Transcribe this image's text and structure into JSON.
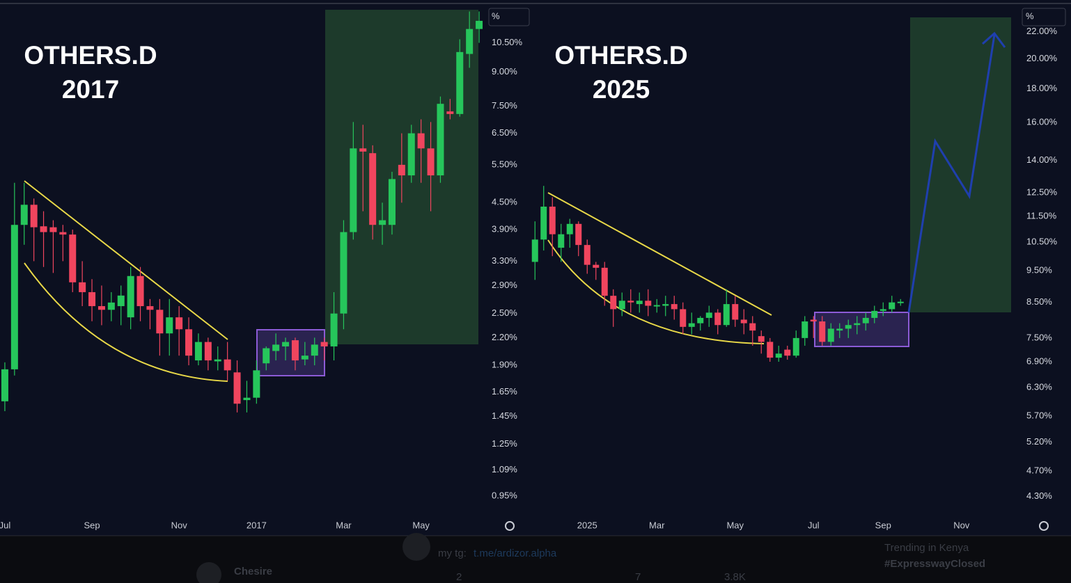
{
  "chart_data": [
    {
      "type": "candlestick",
      "title": "OTHERS.D",
      "subtitle": "2017",
      "scale_label": "%",
      "log_scale": true,
      "grid": false,
      "up_color": "#26c65b",
      "down_color": "#f0455e",
      "categories": [
        "Jul",
        null,
        null,
        null,
        null,
        null,
        null,
        null,
        null,
        "Sep",
        null,
        null,
        null,
        null,
        null,
        null,
        null,
        null,
        "Nov",
        null,
        null,
        null,
        null,
        null,
        null,
        null,
        "2017",
        null,
        null,
        null,
        null,
        null,
        null,
        null,
        null,
        "Mar",
        null,
        null,
        null,
        null,
        null,
        null,
        null,
        "May",
        null,
        null,
        null,
        null,
        null,
        null
      ],
      "open": [
        1.57,
        1.86,
        4.0,
        4.45,
        3.97,
        3.95,
        3.85,
        3.8,
        2.95,
        2.8,
        2.6,
        2.55,
        2.6,
        2.45,
        3.05,
        2.6,
        2.55,
        2.25,
        2.45,
        2.3,
        1.95,
        2.15,
        1.94,
        1.96,
        1.83,
        1.58,
        1.6,
        1.92,
        2.05,
        2.1,
        2.17,
        1.96,
        2.0,
        2.15,
        2.1,
        2.5,
        3.85,
        6.0,
        5.85,
        4.0,
        4.0,
        5.5,
        5.2,
        6.5,
        6.0,
        5.2,
        7.3,
        7.2,
        9.9,
        11.3
      ],
      "high": [
        1.93,
        5.0,
        5.0,
        4.6,
        4.3,
        4.1,
        4.0,
        3.9,
        3.3,
        3.0,
        2.9,
        2.8,
        2.9,
        3.2,
        3.2,
        2.7,
        2.7,
        2.7,
        2.6,
        2.45,
        2.25,
        2.2,
        2.1,
        2.15,
        1.95,
        1.75,
        1.95,
        2.1,
        2.25,
        2.2,
        2.2,
        2.15,
        2.2,
        2.2,
        2.8,
        4.1,
        6.9,
        6.8,
        6.1,
        4.5,
        5.3,
        6.5,
        6.8,
        7.0,
        6.9,
        7.9,
        7.8,
        10.7,
        12.4,
        12.4
      ],
      "low": [
        1.49,
        1.8,
        3.6,
        3.3,
        3.2,
        3.1,
        3.3,
        2.8,
        2.6,
        2.4,
        2.35,
        2.4,
        2.35,
        2.3,
        2.4,
        2.3,
        2.0,
        2.0,
        2.0,
        1.9,
        1.9,
        1.85,
        1.85,
        1.75,
        1.48,
        1.48,
        1.55,
        1.85,
        1.95,
        1.95,
        1.85,
        1.9,
        1.9,
        1.95,
        1.95,
        2.3,
        3.7,
        4.3,
        3.7,
        3.6,
        3.8,
        4.5,
        5.0,
        5.0,
        4.3,
        5.0,
        7.0,
        7.1,
        9.2,
        10.5
      ],
      "close": [
        1.86,
        4.0,
        4.45,
        3.95,
        3.85,
        3.85,
        3.8,
        2.95,
        2.8,
        2.6,
        2.55,
        2.65,
        2.75,
        3.05,
        2.6,
        2.55,
        2.25,
        2.45,
        2.3,
        2.0,
        2.15,
        1.95,
        1.96,
        1.85,
        1.55,
        1.6,
        1.85,
        2.08,
        2.12,
        2.15,
        1.95,
        2.0,
        2.12,
        2.1,
        2.5,
        3.85,
        6.0,
        5.9,
        4.0,
        4.1,
        5.1,
        5.2,
        6.5,
        6.0,
        5.2,
        7.6,
        7.2,
        10.0,
        11.3,
        11.8
      ],
      "ylim": [
        0.86,
        12.7
      ],
      "yticks": [
        {
          "value": 10.5,
          "label": "10.50%"
        },
        {
          "value": 9,
          "label": "9.00%"
        },
        {
          "value": 7.5,
          "label": "7.50%"
        },
        {
          "value": 6.5,
          "label": "6.50%"
        },
        {
          "value": 5.5,
          "label": "5.50%"
        },
        {
          "value": 4.5,
          "label": "4.50%"
        },
        {
          "value": 3.9,
          "label": "3.90%"
        },
        {
          "value": 3.3,
          "label": "3.30%"
        },
        {
          "value": 2.9,
          "label": "2.90%"
        },
        {
          "value": 2.5,
          "label": "2.50%"
        },
        {
          "value": 2.2,
          "label": "2.20%"
        },
        {
          "value": 1.9,
          "label": "1.90%"
        },
        {
          "value": 1.65,
          "label": "1.65%"
        },
        {
          "value": 1.45,
          "label": "1.45%"
        },
        {
          "value": 1.25,
          "label": "1.25%"
        },
        {
          "value": 1.09,
          "label": "1.09%"
        },
        {
          "value": 0.95,
          "label": "0.95%"
        }
      ]
    },
    {
      "type": "candlestick",
      "title": "OTHERS.D",
      "subtitle": "2025",
      "scale_label": "%",
      "log_scale": true,
      "grid": false,
      "up_color": "#26c65b",
      "down_color": "#f0455e",
      "categories": [
        null,
        null,
        null,
        null,
        null,
        null,
        "2025",
        null,
        null,
        null,
        null,
        null,
        null,
        null,
        "Mar",
        null,
        null,
        null,
        null,
        null,
        null,
        null,
        null,
        "May",
        null,
        null,
        null,
        null,
        null,
        null,
        null,
        null,
        "Jul",
        null,
        null,
        null,
        null,
        null,
        null,
        null,
        "Sep",
        null,
        null,
        null,
        null,
        null,
        null,
        null,
        null,
        "Nov",
        null,
        null,
        null,
        null,
        null,
        null
      ],
      "open": [
        9.8,
        10.6,
        11.9,
        10.3,
        10.8,
        11.2,
        10.4,
        9.7,
        9.6,
        8.7,
        8.3,
        8.55,
        8.45,
        8.55,
        8.38,
        8.4,
        8.45,
        8.3,
        7.8,
        7.9,
        8.05,
        8.2,
        7.85,
        8.45,
        8.0,
        7.9,
        7.55,
        7.4,
        7.0,
        7.2,
        7.05,
        7.5,
        8.0,
        7.95,
        7.4,
        7.7,
        7.75,
        7.85,
        7.9,
        8.05,
        8.25,
        8.3,
        8.48,
        null,
        null,
        null,
        null,
        null,
        null,
        null,
        null,
        null,
        null,
        null,
        null,
        null
      ],
      "high": [
        11.3,
        12.8,
        12.3,
        11.2,
        11.4,
        11.3,
        10.6,
        9.8,
        9.8,
        8.9,
        8.8,
        8.9,
        8.8,
        8.9,
        8.6,
        8.7,
        8.7,
        8.5,
        8.2,
        8.1,
        8.4,
        8.3,
        8.9,
        8.7,
        8.3,
        8.1,
        7.7,
        7.5,
        7.3,
        7.3,
        7.7,
        8.1,
        8.1,
        8.1,
        7.9,
        7.9,
        8.0,
        8.1,
        8.2,
        8.4,
        8.5,
        8.7,
        8.6,
        null,
        null,
        null,
        null,
        null,
        null,
        null,
        null,
        null,
        null,
        null,
        null,
        null
      ],
      "low": [
        9.2,
        10.2,
        10.0,
        9.8,
        10.3,
        10.0,
        9.4,
        9.2,
        8.4,
        7.8,
        8.1,
        8.2,
        8.2,
        8.1,
        8.2,
        8.1,
        8.0,
        7.6,
        7.6,
        7.7,
        7.8,
        7.6,
        7.8,
        7.8,
        7.6,
        7.3,
        7.1,
        6.9,
        6.9,
        6.95,
        7.0,
        7.3,
        7.5,
        7.3,
        7.3,
        7.5,
        7.5,
        7.6,
        7.7,
        7.9,
        8.1,
        8.2,
        8.4,
        null,
        null,
        null,
        null,
        null,
        null,
        null,
        null,
        null,
        null,
        null,
        null,
        null
      ],
      "close": [
        10.6,
        11.9,
        10.8,
        10.8,
        11.2,
        10.4,
        9.7,
        9.6,
        8.7,
        8.3,
        8.55,
        8.5,
        8.55,
        8.4,
        8.42,
        8.45,
        8.3,
        7.8,
        7.9,
        8.05,
        8.2,
        7.85,
        8.45,
        8.0,
        7.9,
        7.7,
        7.4,
        7.0,
        7.1,
        7.05,
        7.5,
        7.95,
        7.95,
        7.4,
        7.75,
        7.75,
        7.85,
        7.9,
        8.05,
        8.25,
        8.3,
        8.5,
        8.52,
        null,
        null,
        null,
        null,
        null,
        null,
        null,
        null,
        null,
        null,
        null,
        null,
        null
      ],
      "ylim": [
        4.03,
        24.0
      ],
      "yticks": [
        {
          "value": 22,
          "label": "22.00%"
        },
        {
          "value": 20,
          "label": "20.00%"
        },
        {
          "value": 18,
          "label": "18.00%"
        },
        {
          "value": 16,
          "label": "16.00%"
        },
        {
          "value": 14,
          "label": "14.00%"
        },
        {
          "value": 12.5,
          "label": "12.50%"
        },
        {
          "value": 11.5,
          "label": "11.50%"
        },
        {
          "value": 10.5,
          "label": "10.50%"
        },
        {
          "value": 9.5,
          "label": "9.50%"
        },
        {
          "value": 8.5,
          "label": "8.50%"
        },
        {
          "value": 7.5,
          "label": "7.50%"
        },
        {
          "value": 6.9,
          "label": "6.90%"
        },
        {
          "value": 6.3,
          "label": "6.30%"
        },
        {
          "value": 5.7,
          "label": "5.70%"
        },
        {
          "value": 5.2,
          "label": "5.20%"
        },
        {
          "value": 4.7,
          "label": "4.70%"
        },
        {
          "value": 4.3,
          "label": "4.30%"
        }
      ]
    }
  ],
  "overlay": {
    "user": "Chesire",
    "post_prefix": "my tg:",
    "link": "t.me/ardizor.alpha",
    "trending_label": "Trending in Kenya",
    "trending_tag": "#ExpresswayClosed",
    "replies": 2,
    "likes": 7,
    "views": "3.8K"
  }
}
